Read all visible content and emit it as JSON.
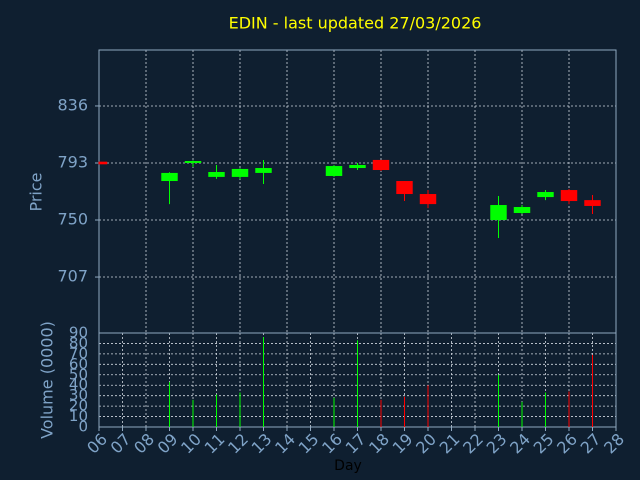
{
  "chart_data": [
    {
      "type": "candlestick",
      "title": "EDIN - last updated 27/03/2026",
      "ylabel": "Price",
      "x": [
        6,
        9,
        10,
        11,
        12,
        13,
        16,
        17,
        18,
        19,
        20,
        23,
        24,
        25,
        26,
        27
      ],
      "open": [
        794,
        779.4,
        793,
        782.5,
        782.5,
        785.5,
        783.2,
        789.2,
        795.3,
        779.4,
        769.6,
        750,
        755.3,
        767.3,
        772.6,
        765
      ],
      "high": [
        794,
        786,
        795,
        791.5,
        789,
        795.3,
        791.5,
        793,
        795.3,
        779.4,
        772.6,
        768.1,
        761.3,
        772.6,
        773.4,
        768.9
      ],
      "low": [
        792,
        762,
        790,
        781,
        781,
        777.2,
        782.5,
        787.7,
        787,
        764.3,
        759,
        736.4,
        754.5,
        765,
        762,
        754.5
      ],
      "close": [
        792,
        785.5,
        794.5,
        786.2,
        788.5,
        789.2,
        790.7,
        791.5,
        787.7,
        769.6,
        762,
        761.3,
        759.8,
        771.1,
        764.3,
        760.6
      ],
      "up_color": "#00ff00",
      "down_color": "#ff0000",
      "xlim": [
        6,
        28
      ],
      "ylim": [
        664.8,
        878.2
      ],
      "yticks": [
        707,
        750,
        793,
        836
      ],
      "grid": true
    },
    {
      "type": "bar",
      "ylabel": "Volume (0000)",
      "xlabel": "Day",
      "x": [
        6,
        9,
        10,
        11,
        12,
        13,
        16,
        17,
        18,
        19,
        20,
        23,
        24,
        25,
        26,
        27
      ],
      "values": [
        null,
        43,
        26,
        31,
        33,
        86,
        28,
        83,
        26,
        29,
        40,
        50,
        24,
        33,
        34,
        69
      ],
      "xlim": [
        6,
        28
      ],
      "ylim": [
        0,
        90
      ],
      "yticks": [
        0,
        10,
        20,
        30,
        40,
        50,
        60,
        70,
        80,
        90
      ],
      "xticks": [
        {
          "value": 6,
          "label": "06"
        },
        {
          "value": 7,
          "label": "07"
        },
        {
          "value": 8,
          "label": "08"
        },
        {
          "value": 9,
          "label": "09"
        },
        10,
        11,
        12,
        13,
        14,
        15,
        16,
        17,
        18,
        19,
        20,
        21,
        22,
        23,
        24,
        25,
        26,
        27,
        28
      ],
      "grid": true
    }
  ]
}
